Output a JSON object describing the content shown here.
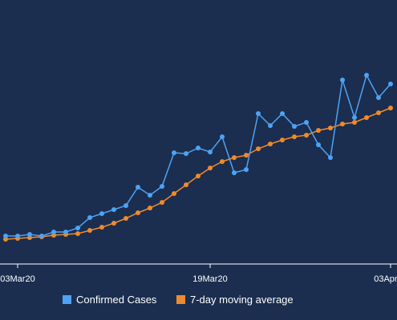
{
  "chart_data": {
    "type": "line",
    "x": [
      "2020-03-02",
      "2020-03-03",
      "2020-03-04",
      "2020-03-05",
      "2020-03-06",
      "2020-03-07",
      "2020-03-08",
      "2020-03-09",
      "2020-03-10",
      "2020-03-11",
      "2020-03-12",
      "2020-03-13",
      "2020-03-14",
      "2020-03-15",
      "2020-03-16",
      "2020-03-17",
      "2020-03-18",
      "2020-03-19",
      "2020-03-20",
      "2020-03-21",
      "2020-03-22",
      "2020-03-23",
      "2020-03-24",
      "2020-03-25",
      "2020-03-26",
      "2020-03-27",
      "2020-03-28",
      "2020-03-29",
      "2020-03-30",
      "2020-03-31",
      "2020-04-01",
      "2020-04-02",
      "2020-04-03"
    ],
    "series": [
      {
        "name": "Confirmed Cases",
        "color": "#4da3f5",
        "values": [
          35,
          35,
          37,
          35,
          40,
          40,
          45,
          58,
          63,
          68,
          73,
          96,
          86,
          97,
          139,
          138,
          145,
          140,
          159,
          114,
          118,
          188,
          173,
          188,
          172,
          177,
          149,
          133,
          230,
          183,
          236,
          208,
          225
        ]
      },
      {
        "name": "7-day moving average",
        "color": "#f08a2c",
        "values": [
          31,
          32,
          33,
          34,
          36,
          37,
          38,
          42,
          46,
          51,
          57,
          64,
          70,
          77,
          88,
          99,
          110,
          120,
          128,
          133,
          136,
          144,
          150,
          155,
          159,
          161,
          167,
          170,
          175,
          177,
          183,
          189,
          195
        ]
      }
    ],
    "xticks": [
      {
        "value": "2020-03-03",
        "label": "03Mar20"
      },
      {
        "value": "2020-03-19",
        "label": "19Mar20"
      },
      {
        "value": "2020-04-03",
        "label": "03Apr20"
      }
    ],
    "ylim": [
      0,
      330
    ]
  }
}
